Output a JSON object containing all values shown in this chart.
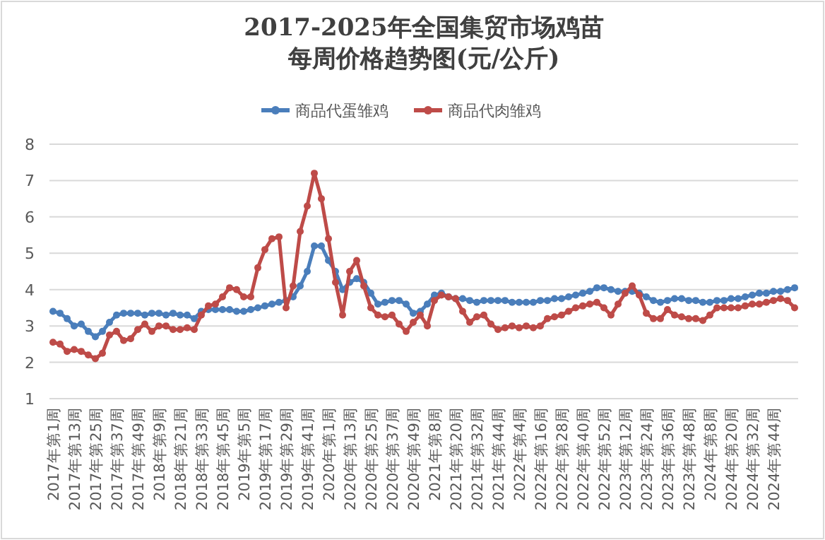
{
  "chart_data": {
    "type": "line",
    "title": "2017-2025年全国集贸市场鸡苗",
    "subtitle": "每周价格趋势图(元/公斤)",
    "categories": [
      "2017年第1周",
      null,
      null,
      "2017年第13周",
      null,
      null,
      "2017年第25周",
      null,
      null,
      "2017年第37周",
      null,
      null,
      "2017年第49周",
      null,
      null,
      "2018年第9周",
      null,
      null,
      "2018年第21周",
      null,
      null,
      "2018年第33周",
      null,
      null,
      "2018年第45周",
      null,
      null,
      "2019年第5周",
      null,
      null,
      "2019年第17周",
      null,
      null,
      "2019年第29周",
      null,
      null,
      "2019年第41周",
      null,
      null,
      "2020年第1周",
      null,
      null,
      "2020年第13周",
      null,
      null,
      "2020年第25周",
      null,
      null,
      "2020年第37周",
      null,
      null,
      "2020年第49周",
      null,
      null,
      "2021年第8周",
      null,
      null,
      "2021年第20周",
      null,
      null,
      "2021年第32周",
      null,
      null,
      "2021年第44周",
      null,
      null,
      "2022年第4周",
      null,
      null,
      "2022年第16周",
      null,
      null,
      "2022年第28周",
      null,
      null,
      "2022年第40周",
      null,
      null,
      "2022年第52周",
      null,
      null,
      "2023年第12周",
      null,
      null,
      "2023年第24周",
      null,
      null,
      "2023年第36周",
      null,
      null,
      "2023年第48周",
      null,
      null,
      "2024年第8周",
      null,
      null,
      "2024年第20周",
      null,
      null,
      "2024年第32周",
      null,
      null,
      "2024年第44周",
      null,
      null,
      null
    ],
    "series": [
      {
        "name": "商品代蛋雏鸡",
        "color": "#4a7ebb",
        "values": [
          3.4,
          3.35,
          3.2,
          3.0,
          3.05,
          2.85,
          2.7,
          2.85,
          3.1,
          3.3,
          3.35,
          3.35,
          3.35,
          3.3,
          3.35,
          3.35,
          3.3,
          3.35,
          3.3,
          3.3,
          3.2,
          3.4,
          3.45,
          3.45,
          3.45,
          3.45,
          3.4,
          3.4,
          3.45,
          3.5,
          3.55,
          3.6,
          3.65,
          3.7,
          3.8,
          4.1,
          4.5,
          5.2,
          5.2,
          4.8,
          4.5,
          4.0,
          4.2,
          4.3,
          4.2,
          3.9,
          3.6,
          3.65,
          3.7,
          3.7,
          3.6,
          3.35,
          3.4,
          3.6,
          3.85,
          3.9,
          3.8,
          3.75,
          3.75,
          3.7,
          3.65,
          3.7,
          3.7,
          3.7,
          3.7,
          3.65,
          3.65,
          3.65,
          3.65,
          3.7,
          3.7,
          3.75,
          3.75,
          3.8,
          3.85,
          3.9,
          3.95,
          4.05,
          4.05,
          4.0,
          3.95,
          3.95,
          3.95,
          3.9,
          3.8,
          3.7,
          3.65,
          3.7,
          3.75,
          3.75,
          3.7,
          3.7,
          3.65,
          3.65,
          3.7,
          3.7,
          3.75,
          3.75,
          3.8,
          3.85,
          3.9,
          3.9,
          3.95,
          3.95,
          4.0,
          4.05
        ]
      },
      {
        "name": "商品代肉雏鸡",
        "color": "#be4b48",
        "values": [
          2.55,
          2.5,
          2.3,
          2.35,
          2.3,
          2.2,
          2.1,
          2.25,
          2.75,
          2.85,
          2.6,
          2.65,
          2.9,
          3.05,
          2.85,
          3.0,
          3.0,
          2.9,
          2.9,
          2.95,
          2.9,
          3.3,
          3.55,
          3.6,
          3.8,
          4.05,
          4.0,
          3.8,
          3.8,
          4.6,
          5.1,
          5.4,
          5.45,
          3.5,
          4.1,
          5.6,
          6.3,
          7.2,
          6.5,
          5.4,
          4.2,
          3.3,
          4.5,
          4.8,
          4.1,
          3.5,
          3.3,
          3.25,
          3.3,
          3.05,
          2.85,
          3.1,
          3.3,
          3.0,
          3.7,
          3.85,
          3.8,
          3.75,
          3.4,
          3.1,
          3.25,
          3.3,
          3.05,
          2.9,
          2.95,
          3.0,
          2.95,
          3.0,
          2.95,
          3.0,
          3.2,
          3.25,
          3.3,
          3.4,
          3.5,
          3.55,
          3.6,
          3.65,
          3.5,
          3.3,
          3.6,
          3.9,
          4.1,
          3.85,
          3.35,
          3.2,
          3.2,
          3.45,
          3.3,
          3.25,
          3.2,
          3.2,
          3.15,
          3.3,
          3.5,
          3.5,
          3.5,
          3.5,
          3.55,
          3.6,
          3.6,
          3.65,
          3.7,
          3.75,
          3.7,
          3.5
        ]
      }
    ],
    "ylim": [
      1,
      8
    ],
    "yticks": [
      1,
      2,
      3,
      4,
      5,
      6,
      7,
      8
    ],
    "grid": "y",
    "legend": "top",
    "marker": "circle"
  }
}
